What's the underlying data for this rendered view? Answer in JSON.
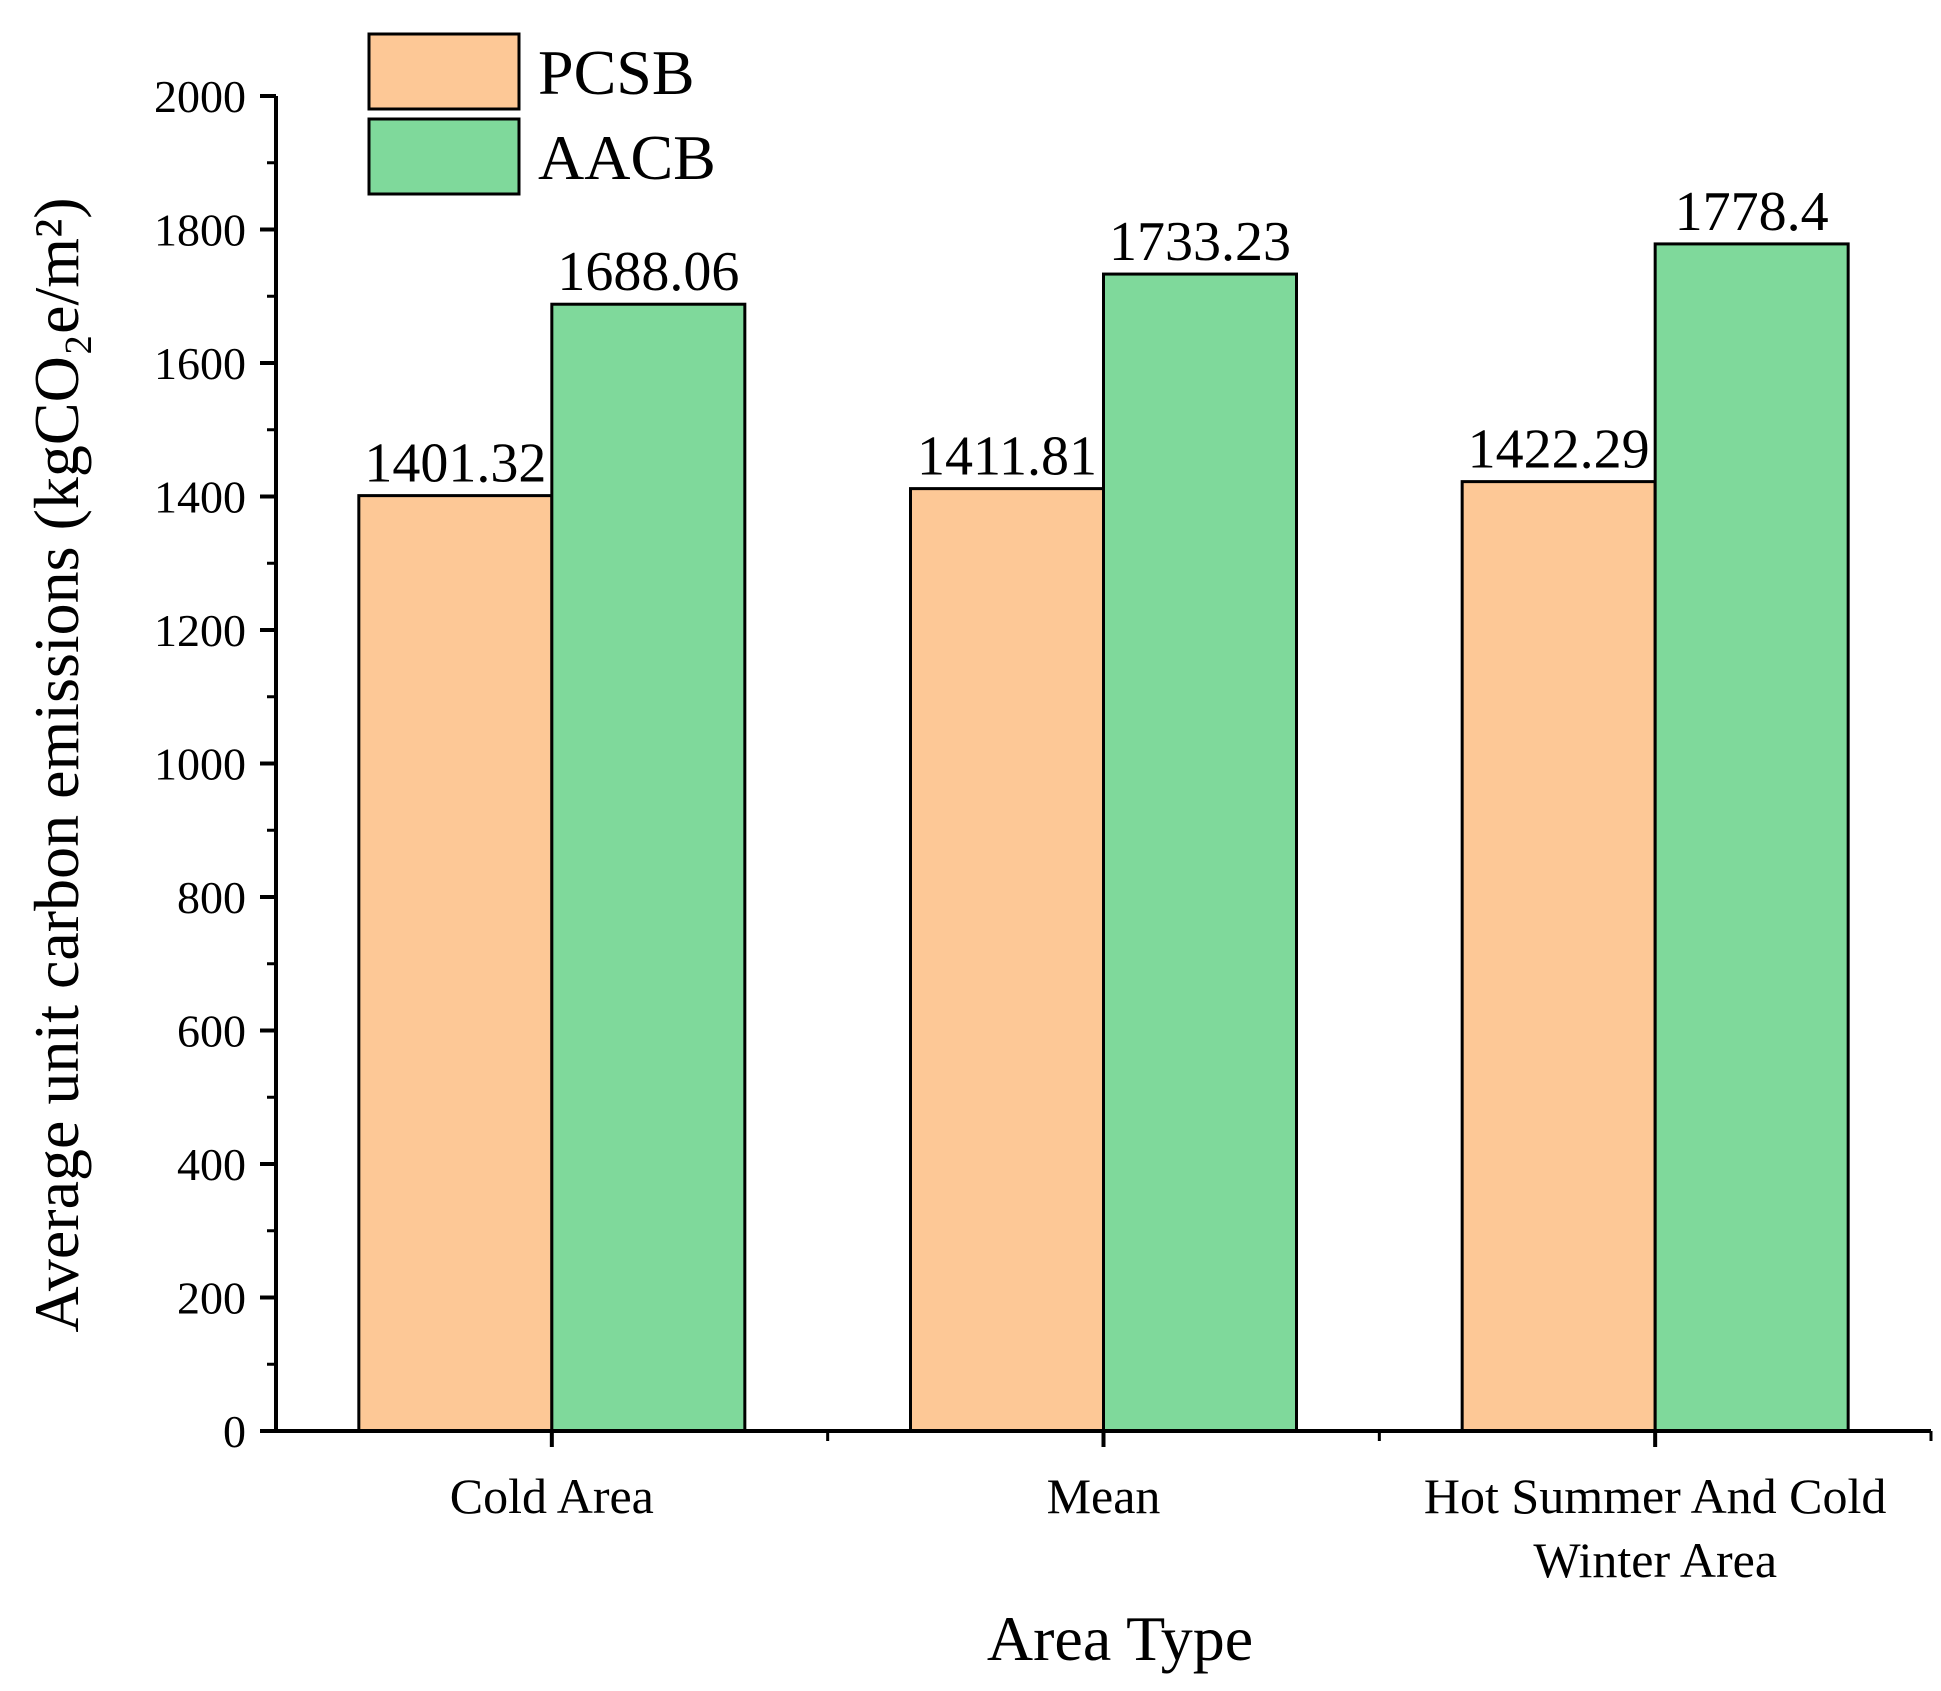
{
  "chart_data": {
    "type": "bar",
    "title": "",
    "xlabel": "Area Type",
    "ylabel": "Average unit carbon emissions (kgCO₂e/m²)",
    "ylim": [
      0,
      2000
    ],
    "yticks": [
      "0",
      "200",
      "400",
      "600",
      "800",
      "1000",
      "1200",
      "1400",
      "1600",
      "1800",
      "2000"
    ],
    "categories": [
      [
        "Cold Area"
      ],
      [
        "Mean"
      ],
      [
        "Hot Summer And Cold",
        "Winter Area"
      ]
    ],
    "series": [
      {
        "name": "PCSB",
        "color": "#FDC896",
        "values": [
          1401.32,
          1411.81,
          1422.29
        ],
        "labels": [
          "1401.32",
          "1411.81",
          "1422.29"
        ]
      },
      {
        "name": "AACB",
        "color": "#7FD99B",
        "values": [
          1688.06,
          1733.23,
          1778.4
        ],
        "labels": [
          "1688.06",
          "1733.23",
          "1778.4"
        ]
      }
    ],
    "legend_position": "top-left",
    "grid": false
  }
}
